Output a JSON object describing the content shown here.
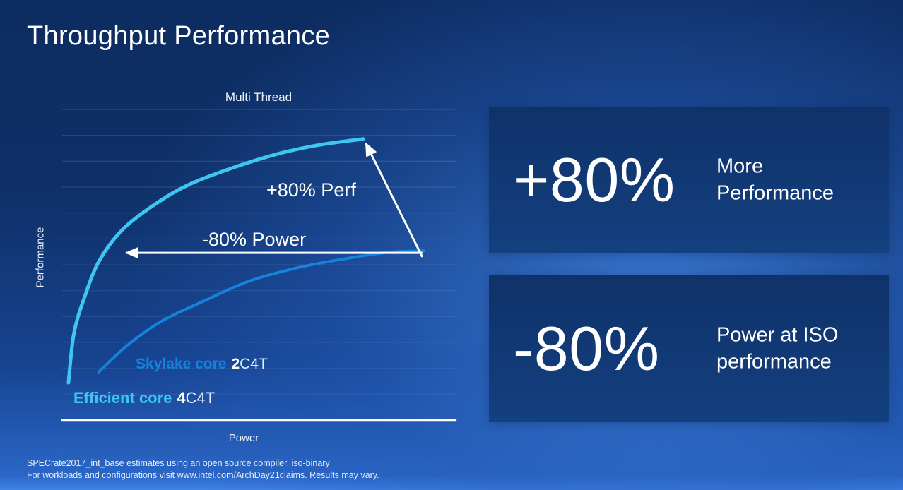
{
  "title": "Throughput Performance",
  "chart_data": {
    "type": "line",
    "title": "Multi Thread",
    "xlabel": "Power",
    "ylabel": "Performance",
    "xlim": [
      0,
      1
    ],
    "ylim": [
      0,
      2
    ],
    "grid": true,
    "legend_position": "inside-bottom-left",
    "series": [
      {
        "name": "Efficient core",
        "cores": "4",
        "config_suffix": "C4T",
        "color": "#3cc6f0",
        "points": [
          [
            0.016,
            0.24
          ],
          [
            0.03,
            0.56
          ],
          [
            0.058,
            0.8
          ],
          [
            0.093,
            1.02
          ],
          [
            0.147,
            1.21
          ],
          [
            0.219,
            1.36
          ],
          [
            0.309,
            1.5
          ],
          [
            0.417,
            1.61
          ],
          [
            0.542,
            1.71
          ],
          [
            0.65,
            1.77
          ],
          [
            0.765,
            1.81
          ]
        ]
      },
      {
        "name": "Skylake core",
        "cores": "2",
        "config_suffix": "C4T",
        "color": "#1583da",
        "points": [
          [
            0.093,
            0.31
          ],
          [
            0.165,
            0.48
          ],
          [
            0.255,
            0.64
          ],
          [
            0.363,
            0.77
          ],
          [
            0.47,
            0.89
          ],
          [
            0.596,
            0.98
          ],
          [
            0.722,
            1.04
          ],
          [
            0.829,
            1.08
          ],
          [
            0.919,
            1.09
          ]
        ]
      }
    ],
    "annotations": [
      {
        "id": "perf-gain",
        "label": "+80% Perf",
        "from": [
          0.915,
          1.05
        ],
        "to": [
          0.772,
          1.78
        ]
      },
      {
        "id": "power-save",
        "label": "-80% Power",
        "from": [
          0.915,
          1.077
        ],
        "to": [
          0.163,
          1.077
        ]
      }
    ]
  },
  "stats": [
    {
      "value": "+80%",
      "label": "More Performance"
    },
    {
      "value": "-80%",
      "label": "Power at ISO performance"
    }
  ],
  "footer": {
    "line1": "SPECrate2017_int_base estimates using an open source compiler, iso-binary",
    "line2_prefix": "For workloads and configurations visit ",
    "link_text": "www.intel.com/ArchDay21claims",
    "line2_suffix": ". Results may vary."
  }
}
